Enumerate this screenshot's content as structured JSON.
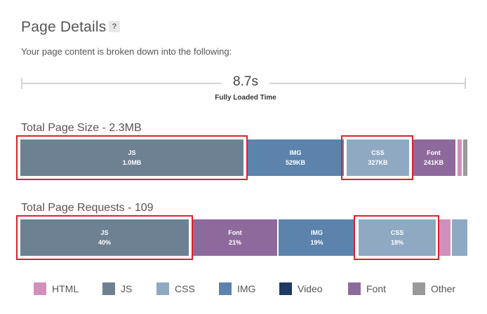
{
  "page": {
    "title": "Page Details",
    "help_label": "?",
    "subtitle": "Your page content is broken down into the following:"
  },
  "timeline": {
    "value": "8.7s",
    "label": "Fully Loaded Time"
  },
  "page_size": {
    "title": "Total Page Size - 2.3MB",
    "segments": [
      {
        "name": "JS",
        "value": "1.0MB",
        "color": "#6e8192"
      },
      {
        "name": "IMG",
        "value": "529KB",
        "color": "#5b83ac"
      },
      {
        "name": "CSS",
        "value": "327KB",
        "color": "#8fa9c2"
      },
      {
        "name": "Font",
        "value": "241KB",
        "color": "#8e6a9c"
      },
      {
        "name": "HTML",
        "value": "",
        "color": "#d18fbb"
      },
      {
        "name": "Other",
        "value": "",
        "color": "#9a9a9a"
      }
    ]
  },
  "page_requests": {
    "title": "Total Page Requests - 109",
    "segments": [
      {
        "name": "JS",
        "value": "40%",
        "color": "#6e8192"
      },
      {
        "name": "Font",
        "value": "21%",
        "color": "#8e6a9c"
      },
      {
        "name": "IMG",
        "value": "19%",
        "color": "#5b83ac"
      },
      {
        "name": "CSS",
        "value": "18%",
        "color": "#8fa9c2"
      },
      {
        "name": "HTML",
        "value": "",
        "color": "#d18fbb"
      },
      {
        "name": "Other",
        "value": "",
        "color": "#8fa9c2"
      }
    ]
  },
  "legend": [
    {
      "label": "HTML",
      "color": "#d18fbb"
    },
    {
      "label": "JS",
      "color": "#6e8192"
    },
    {
      "label": "CSS",
      "color": "#8fa9c2"
    },
    {
      "label": "IMG",
      "color": "#5b83ac"
    },
    {
      "label": "Video",
      "color": "#1f3a63"
    },
    {
      "label": "Font",
      "color": "#8e6a9c"
    },
    {
      "label": "Other",
      "color": "#9a9a9a"
    }
  ],
  "highlight_color": "#e0202a"
}
